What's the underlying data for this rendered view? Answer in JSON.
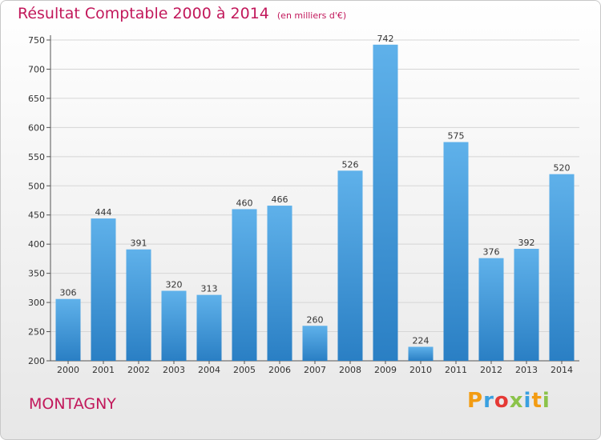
{
  "chart_data": {
    "type": "bar",
    "title": "Résultat Comptable 2000 à 2014",
    "subtitle": "(en milliers d'€)",
    "xlabel": "",
    "ylabel": "",
    "categories": [
      "2000",
      "2001",
      "2002",
      "2003",
      "2004",
      "2005",
      "2006",
      "2007",
      "2008",
      "2009",
      "2010",
      "2011",
      "2012",
      "2013",
      "2014"
    ],
    "values": [
      306,
      444,
      391,
      320,
      313,
      460,
      466,
      260,
      526,
      742,
      224,
      575,
      376,
      392,
      520
    ],
    "ylim": [
      200,
      750
    ],
    "yticks": [
      200,
      250,
      300,
      350,
      400,
      450,
      500,
      550,
      600,
      650,
      700,
      750
    ],
    "grid": true,
    "bar_color": "#4da3e0"
  },
  "footer": {
    "town": "MONTAGNY",
    "logo_letters": [
      "P",
      "r",
      "o",
      "x",
      "i",
      "t",
      "i"
    ],
    "logo_colors": [
      "#f39c12",
      "#3aa0e0",
      "#e53935",
      "#8bc34a",
      "#3aa0e0",
      "#f39c12",
      "#8bc34a"
    ]
  }
}
